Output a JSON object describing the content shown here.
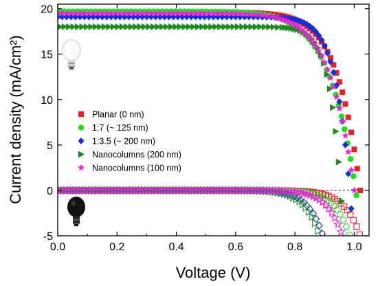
{
  "chart_data": {
    "type": "scatter",
    "title": "",
    "xlabel": "Voltage (V)",
    "ylabel": "Current density (mA/cm²)",
    "xlim": [
      0.0,
      1.05
    ],
    "ylim": [
      -5,
      20.5
    ],
    "xticks": [
      "0.0",
      "0.2",
      "0.4",
      "0.6",
      "0.8",
      "1.0"
    ],
    "yticks": [
      "-5",
      "0",
      "5",
      "10",
      "15",
      "20"
    ],
    "legend_position": "center-left",
    "reference_line": {
      "y": 0,
      "style": "dashed"
    },
    "conditions": {
      "light": "light-bulb-icon (filled markers)",
      "dark": "dark-bulb-icon (open markers)"
    },
    "series": [
      {
        "name": "Planar (0 nm)",
        "marker": "square",
        "color": "#e8202a",
        "light": {
          "jsc": 19.6,
          "voc": 1.02,
          "n": 6
        },
        "dark": {
          "n": 1.9,
          "x_at_minus5": 1.02
        }
      },
      {
        "name": "1:7 (~ 125 nm)",
        "marker": "circle",
        "color": "#1ee01e",
        "light": {
          "jsc": 19.7,
          "voc": 1.005,
          "n": 5
        },
        "dark": {
          "n": 1.9,
          "x_at_minus5": 0.985
        }
      },
      {
        "name": "1:3.5 (~ 200 nm)",
        "marker": "diamond",
        "color": "#1030e0",
        "light": {
          "jsc": 19.1,
          "voc": 0.985,
          "n": 9
        },
        "dark": {
          "n": 1.75,
          "x_at_minus5": 0.895
        }
      },
      {
        "name": "Nanocolumns (200 nm)",
        "marker": "triangle-right",
        "color": "#1c8a1c",
        "light": {
          "jsc": 18.0,
          "voc": 0.955,
          "n": 11
        },
        "dark": {
          "n": 1.75,
          "x_at_minus5": 0.885
        }
      },
      {
        "name": "Nanocolumns (100 nm)",
        "marker": "star",
        "color": "#f020e0",
        "light": {
          "jsc": 19.5,
          "voc": 1.0,
          "n": 5.5
        },
        "dark": {
          "n": 1.85,
          "x_at_minus5": 0.96
        }
      }
    ]
  }
}
